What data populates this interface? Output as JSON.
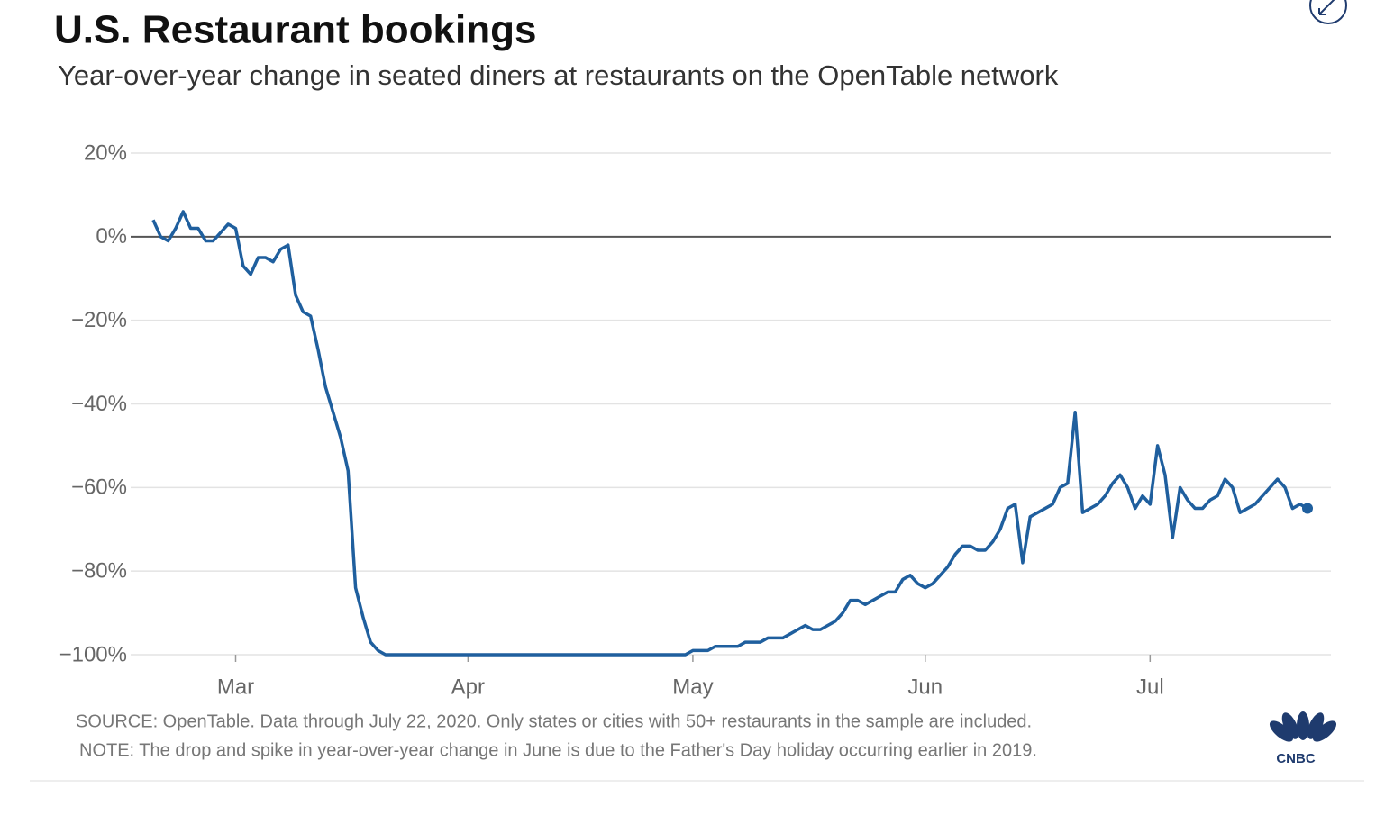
{
  "chart_data": {
    "type": "line",
    "title": "U.S. Restaurant bookings",
    "subtitle": "Year-over-year change in seated diners at restaurants on the OpenTable network",
    "source": "SOURCE: OpenTable. Data through July 22, 2020. Only states or cities with 50+ restaurants in the sample are included.",
    "note": "NOTE: The drop and spike in year-over-year change in June is due to the Father's Day holiday occurring earlier in 2019.",
    "logo": "CNBC",
    "categories": [
      null,
      null,
      null,
      null,
      null,
      null,
      null,
      null,
      null,
      null,
      null,
      "Mar",
      null,
      null,
      null,
      null,
      null,
      null,
      null,
      null,
      null,
      null,
      null,
      null,
      null,
      null,
      null,
      null,
      null,
      null,
      null,
      null,
      null,
      null,
      null,
      null,
      null,
      null,
      null,
      null,
      null,
      null,
      "Apr",
      null,
      null,
      null,
      null,
      null,
      null,
      null,
      null,
      null,
      null,
      null,
      null,
      null,
      null,
      null,
      null,
      null,
      null,
      null,
      null,
      null,
      null,
      null,
      null,
      null,
      null,
      null,
      null,
      null,
      "May",
      null,
      null,
      null,
      null,
      null,
      null,
      null,
      null,
      null,
      null,
      null,
      null,
      null,
      null,
      null,
      null,
      null,
      null,
      null,
      null,
      null,
      null,
      null,
      null,
      null,
      null,
      null,
      null,
      null,
      null,
      "Jun",
      null,
      null,
      null,
      null,
      null,
      null,
      null,
      null,
      null,
      null,
      null,
      null,
      null,
      null,
      null,
      null,
      null,
      null,
      null,
      null,
      null,
      null,
      null,
      null,
      null,
      null,
      null,
      null,
      null,
      "Jul",
      null,
      null,
      null,
      null,
      null,
      null,
      null,
      null,
      null,
      null,
      null,
      null,
      null,
      null,
      null,
      null,
      null,
      null,
      null,
      null,
      null
    ],
    "series": [
      {
        "name": "Seated diners",
        "color": "#1f5f9e",
        "values": [
          4,
          0,
          -1,
          2,
          6,
          2,
          2,
          -1,
          -1,
          1,
          3,
          2,
          -7,
          -9,
          -5,
          -5,
          -6,
          -3,
          -2,
          -14,
          -18,
          -19,
          -27,
          -36,
          -42,
          -48,
          -56,
          -84,
          -91,
          -97,
          -99,
          -100,
          -100,
          -100,
          -100,
          -100,
          -100,
          -100,
          -100,
          -100,
          -100,
          -100,
          -100,
          -100,
          -100,
          -100,
          -100,
          -100,
          -100,
          -100,
          -100,
          -100,
          -100,
          -100,
          -100,
          -100,
          -100,
          -100,
          -100,
          -100,
          -100,
          -100,
          -100,
          -100,
          -100,
          -100,
          -100,
          -100,
          -100,
          -100,
          -100,
          -100,
          -99,
          -99,
          -99,
          -98,
          -98,
          -98,
          -98,
          -97,
          -97,
          -97,
          -96,
          -96,
          -96,
          -95,
          -94,
          -93,
          -94,
          -94,
          -93,
          -92,
          -90,
          -87,
          -87,
          -88,
          -87,
          -86,
          -85,
          -85,
          -82,
          -81,
          -83,
          -84,
          -83,
          -81,
          -79,
          -76,
          -74,
          -74,
          -75,
          -75,
          -73,
          -70,
          -65,
          -64,
          -78,
          -67,
          -66,
          -65,
          -64,
          -60,
          -59,
          -42,
          -66,
          -65,
          -64,
          -62,
          -59,
          -57,
          -60,
          -65,
          -62,
          -64,
          -50,
          -57,
          -72,
          -60,
          -63,
          -65,
          -65,
          -63,
          -62,
          -58,
          -60,
          -66,
          -65,
          -64,
          -62,
          -60,
          -58,
          -60,
          -65,
          -64,
          -65
        ]
      }
    ],
    "ylim": [
      -100,
      20
    ],
    "yticks": [
      {
        "value": -100,
        "label": "−100%"
      },
      {
        "value": -80,
        "label": "−80%"
      },
      {
        "value": -60,
        "label": "−60%"
      },
      {
        "value": -40,
        "label": "−40%"
      },
      {
        "value": -20,
        "label": "−20%"
      },
      {
        "value": 0,
        "label": "0%"
      },
      {
        "value": 20,
        "label": "20%"
      }
    ],
    "grid": true
  }
}
